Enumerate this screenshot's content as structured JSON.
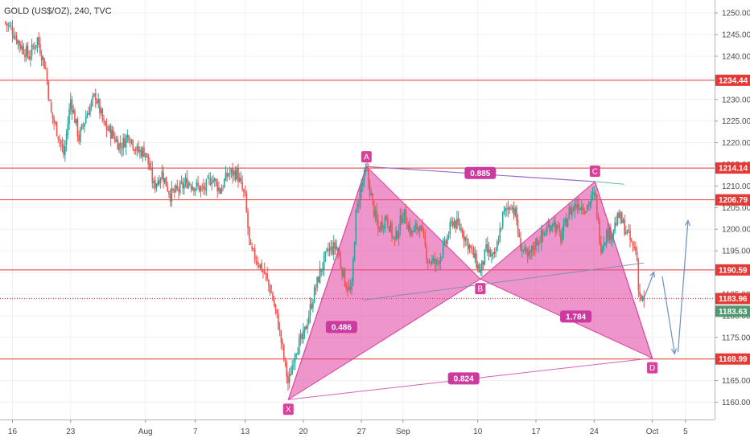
{
  "chart_data": {
    "type": "candlestick",
    "title": "GOLD (US$/OZ), 240, TVC",
    "ylim": [
      1156,
      1253
    ],
    "y_ticks": [
      1160,
      1165,
      1170,
      1175,
      1180,
      1185,
      1190,
      1195,
      1200,
      1205,
      1210,
      1215,
      1220,
      1225,
      1230,
      1235,
      1240,
      1245,
      1250
    ],
    "x_ticks": [
      {
        "label": "16",
        "day": 0
      },
      {
        "label": "23",
        "day": 7
      },
      {
        "label": "Aug",
        "day": 16
      },
      {
        "label": "7",
        "day": 22
      },
      {
        "label": "13",
        "day": 28
      },
      {
        "label": "20",
        "day": 35
      },
      {
        "label": "27",
        "day": 42
      },
      {
        "label": "Sep",
        "day": 47
      },
      {
        "label": "10",
        "day": 56
      },
      {
        "label": "17",
        "day": 63
      },
      {
        "label": "24",
        "day": 70
      },
      {
        "label": "Oct",
        "day": 77
      },
      {
        "label": "5",
        "day": 81
      }
    ],
    "x_range": [
      -1.5,
      84.5
    ],
    "horizontal_levels": [
      {
        "value": 1234.44,
        "label": "1234.44",
        "style": "solid"
      },
      {
        "value": 1214.14,
        "label": "1214.14",
        "style": "solid"
      },
      {
        "value": 1206.79,
        "label": "1206.79",
        "style": "solid"
      },
      {
        "value": 1190.59,
        "label": "1190.59",
        "style": "solid"
      },
      {
        "value": 1183.96,
        "label": "1183.96",
        "style": "dotted"
      },
      {
        "value": 1169.99,
        "label": "1169.99",
        "style": "solid"
      }
    ],
    "last_price": {
      "value": 1183.63,
      "label": "1183.63"
    },
    "harmonic_pattern": {
      "points": [
        {
          "name": "X",
          "day": 33.2,
          "price": 1160.6
        },
        {
          "name": "A",
          "day": 42.6,
          "price": 1214.5
        },
        {
          "name": "B",
          "day": 56.3,
          "price": 1188.5
        },
        {
          "name": "C",
          "day": 70.1,
          "price": 1211.0
        },
        {
          "name": "D",
          "day": 77.0,
          "price": 1170.2
        }
      ],
      "ratios": [
        {
          "label": "0.486",
          "day": 39.6,
          "price": 1177.4
        },
        {
          "label": "0.885",
          "day": 56.3,
          "price": 1213.0
        },
        {
          "label": "1.784",
          "day": 67.8,
          "price": 1179.8
        },
        {
          "label": "0.824",
          "day": 54.3,
          "price": 1165.5
        }
      ]
    },
    "projection_arrows": [
      [
        [
          75.9,
          1183.5
        ],
        [
          77.2,
          1190.1
        ]
      ],
      [
        [
          78.2,
          1189.1
        ],
        [
          79.7,
          1171.2
        ]
      ],
      [
        [
          80.1,
          1171.6
        ],
        [
          81.3,
          1202.0
        ]
      ]
    ],
    "anchors": [
      {
        "day": -1.0,
        "price": 1248
      },
      {
        "day": 0.0,
        "price": 1246
      },
      {
        "day": 0.8,
        "price": 1243
      },
      {
        "day": 2.0,
        "price": 1240
      },
      {
        "day": 3.0,
        "price": 1244
      },
      {
        "day": 4.0,
        "price": 1237
      },
      {
        "day": 4.6,
        "price": 1227
      },
      {
        "day": 5.5,
        "price": 1222
      },
      {
        "day": 6.2,
        "price": 1217
      },
      {
        "day": 7.0,
        "price": 1230
      },
      {
        "day": 8.0,
        "price": 1221
      },
      {
        "day": 9.0,
        "price": 1227
      },
      {
        "day": 10.0,
        "price": 1231
      },
      {
        "day": 11.0,
        "price": 1224
      },
      {
        "day": 12.0,
        "price": 1222
      },
      {
        "day": 13.0,
        "price": 1219
      },
      {
        "day": 14.0,
        "price": 1222
      },
      {
        "day": 15.0,
        "price": 1218
      },
      {
        "day": 16.0,
        "price": 1218
      },
      {
        "day": 17.0,
        "price": 1210
      },
      {
        "day": 18.0,
        "price": 1213
      },
      {
        "day": 19.0,
        "price": 1208
      },
      {
        "day": 20.0,
        "price": 1209
      },
      {
        "day": 21.0,
        "price": 1211
      },
      {
        "day": 22.0,
        "price": 1210
      },
      {
        "day": 23.0,
        "price": 1209
      },
      {
        "day": 24.0,
        "price": 1212
      },
      {
        "day": 25.0,
        "price": 1209
      },
      {
        "day": 26.0,
        "price": 1213
      },
      {
        "day": 27.0,
        "price": 1213
      },
      {
        "day": 28.0,
        "price": 1207
      },
      {
        "day": 28.6,
        "price": 1195
      },
      {
        "day": 29.4,
        "price": 1193
      },
      {
        "day": 30.3,
        "price": 1190
      },
      {
        "day": 31.2,
        "price": 1185
      },
      {
        "day": 32.0,
        "price": 1178
      },
      {
        "day": 33.2,
        "price": 1164
      },
      {
        "day": 34.0,
        "price": 1172
      },
      {
        "day": 35.0,
        "price": 1175
      },
      {
        "day": 36.0,
        "price": 1183
      },
      {
        "day": 37.0,
        "price": 1190
      },
      {
        "day": 38.0,
        "price": 1195
      },
      {
        "day": 39.0,
        "price": 1196
      },
      {
        "day": 40.0,
        "price": 1188
      },
      {
        "day": 40.8,
        "price": 1185
      },
      {
        "day": 41.3,
        "price": 1203
      },
      {
        "day": 42.0,
        "price": 1210
      },
      {
        "day": 42.6,
        "price": 1213.5
      },
      {
        "day": 43.4,
        "price": 1205
      },
      {
        "day": 44.0,
        "price": 1200
      },
      {
        "day": 45.0,
        "price": 1203
      },
      {
        "day": 46.0,
        "price": 1197
      },
      {
        "day": 47.0,
        "price": 1204
      },
      {
        "day": 48.0,
        "price": 1199
      },
      {
        "day": 49.0,
        "price": 1201
      },
      {
        "day": 50.0,
        "price": 1193
      },
      {
        "day": 51.0,
        "price": 1192
      },
      {
        "day": 52.0,
        "price": 1196
      },
      {
        "day": 53.0,
        "price": 1202
      },
      {
        "day": 54.0,
        "price": 1200
      },
      {
        "day": 55.0,
        "price": 1196
      },
      {
        "day": 56.3,
        "price": 1190
      },
      {
        "day": 57.0,
        "price": 1195
      },
      {
        "day": 58.0,
        "price": 1193
      },
      {
        "day": 59.0,
        "price": 1203
      },
      {
        "day": 60.0,
        "price": 1206
      },
      {
        "day": 60.6,
        "price": 1203
      },
      {
        "day": 61.0,
        "price": 1197
      },
      {
        "day": 62.0,
        "price": 1193
      },
      {
        "day": 63.0,
        "price": 1197
      },
      {
        "day": 64.0,
        "price": 1199
      },
      {
        "day": 65.0,
        "price": 1202
      },
      {
        "day": 66.0,
        "price": 1198
      },
      {
        "day": 67.0,
        "price": 1204
      },
      {
        "day": 68.0,
        "price": 1206
      },
      {
        "day": 69.0,
        "price": 1205
      },
      {
        "day": 70.1,
        "price": 1208
      },
      {
        "day": 70.8,
        "price": 1196
      },
      {
        "day": 71.5,
        "price": 1199
      },
      {
        "day": 72.0,
        "price": 1199
      },
      {
        "day": 73.0,
        "price": 1203
      },
      {
        "day": 74.0,
        "price": 1199
      },
      {
        "day": 74.6,
        "price": 1196
      },
      {
        "day": 75.1,
        "price": 1195
      },
      {
        "day": 75.4,
        "price": 1185
      },
      {
        "day": 76.0,
        "price": 1183
      }
    ]
  }
}
